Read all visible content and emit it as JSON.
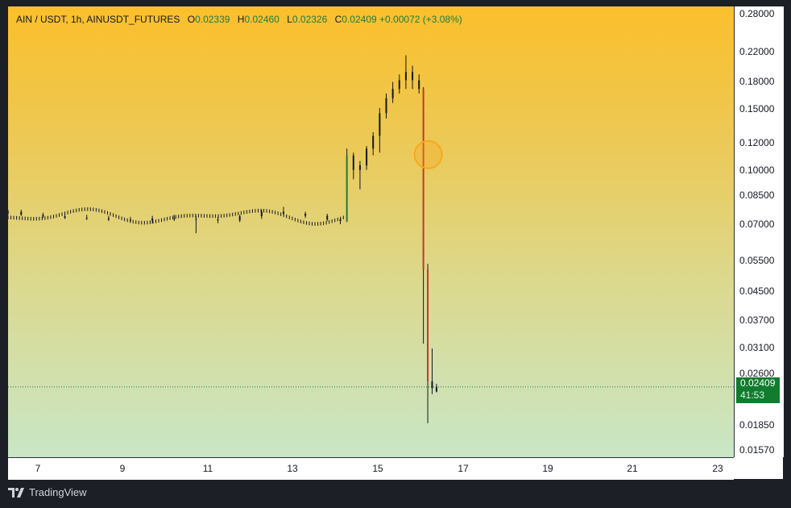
{
  "legend": {
    "symbol": "AIN / USDT, 1h, AINUSDT_FUTURES",
    "o_label": "O",
    "o": "0.02339",
    "h_label": "H",
    "h": "0.02460",
    "l_label": "L",
    "l": "0.02326",
    "c_label": "C",
    "c": "0.02409",
    "change": "+0.00072 (+3.08%)"
  },
  "price_axis": [
    "0.28000",
    "0.22000",
    "0.18000",
    "0.15000",
    "0.12000",
    "0.10000",
    "0.08500",
    "0.07000",
    "0.05500",
    "0.04500",
    "0.03700",
    "0.03100",
    "0.02600",
    "0.01850",
    "0.01570"
  ],
  "time_axis": [
    "7",
    "9",
    "11",
    "13",
    "15",
    "17",
    "19",
    "21",
    "23"
  ],
  "last_price": {
    "value": "0.02409",
    "countdown": "41:53"
  },
  "brand": {
    "name": "TradingView"
  },
  "colors": {
    "up": "#1f7a3f",
    "down": "#c0392b",
    "candle": "#131722",
    "badge": "#0f7c2e",
    "highlight": "#f7a823"
  },
  "chart_data": {
    "type": "candlestick",
    "scale": "log",
    "ylim": [
      0.0152,
      0.292
    ],
    "x_range": [
      "6.7",
      "23.3"
    ],
    "series": [
      {
        "values": [
          {
            "t": 6.7,
            "o": 0.0755,
            "h": 0.077,
            "l": 0.0745,
            "c": 0.076
          },
          {
            "t": 7.0,
            "o": 0.076,
            "h": 0.077,
            "l": 0.074,
            "c": 0.0745
          },
          {
            "t": 7.5,
            "o": 0.0745,
            "h": 0.0755,
            "l": 0.073,
            "c": 0.0738
          },
          {
            "t": 8.0,
            "o": 0.0738,
            "h": 0.075,
            "l": 0.0725,
            "c": 0.073
          },
          {
            "t": 8.5,
            "o": 0.073,
            "h": 0.0745,
            "l": 0.072,
            "c": 0.0728
          },
          {
            "t": 9.0,
            "o": 0.0728,
            "h": 0.074,
            "l": 0.0715,
            "c": 0.0722
          },
          {
            "t": 9.5,
            "o": 0.0722,
            "h": 0.0735,
            "l": 0.071,
            "c": 0.0718
          },
          {
            "t": 10.0,
            "o": 0.0718,
            "h": 0.074,
            "l": 0.0705,
            "c": 0.0728
          },
          {
            "t": 10.5,
            "o": 0.0728,
            "h": 0.0745,
            "l": 0.0715,
            "c": 0.0725
          },
          {
            "t": 11.0,
            "o": 0.0725,
            "h": 0.074,
            "l": 0.066,
            "c": 0.0722
          },
          {
            "t": 11.5,
            "o": 0.0722,
            "h": 0.0735,
            "l": 0.0705,
            "c": 0.0718
          },
          {
            "t": 12.0,
            "o": 0.0718,
            "h": 0.0745,
            "l": 0.071,
            "c": 0.0738
          },
          {
            "t": 12.5,
            "o": 0.0738,
            "h": 0.077,
            "l": 0.0725,
            "c": 0.076
          },
          {
            "t": 13.0,
            "o": 0.076,
            "h": 0.0785,
            "l": 0.0745,
            "c": 0.075
          },
          {
            "t": 13.5,
            "o": 0.075,
            "h": 0.076,
            "l": 0.073,
            "c": 0.074
          },
          {
            "t": 14.0,
            "o": 0.074,
            "h": 0.075,
            "l": 0.0715,
            "c": 0.0722
          },
          {
            "t": 14.3,
            "o": 0.0722,
            "h": 0.073,
            "l": 0.07,
            "c": 0.0715
          },
          {
            "t": 14.45,
            "o": 0.0715,
            "h": 0.115,
            "l": 0.071,
            "c": 0.11
          },
          {
            "t": 14.6,
            "o": 0.11,
            "h": 0.112,
            "l": 0.094,
            "c": 0.1
          },
          {
            "t": 14.75,
            "o": 0.1,
            "h": 0.106,
            "l": 0.088,
            "c": 0.103
          },
          {
            "t": 14.9,
            "o": 0.103,
            "h": 0.117,
            "l": 0.1,
            "c": 0.115
          },
          {
            "t": 15.05,
            "o": 0.115,
            "h": 0.128,
            "l": 0.11,
            "c": 0.125
          },
          {
            "t": 15.2,
            "o": 0.125,
            "h": 0.15,
            "l": 0.112,
            "c": 0.145
          },
          {
            "t": 15.35,
            "o": 0.145,
            "h": 0.165,
            "l": 0.14,
            "c": 0.16
          },
          {
            "t": 15.5,
            "o": 0.16,
            "h": 0.178,
            "l": 0.155,
            "c": 0.17
          },
          {
            "t": 15.65,
            "o": 0.17,
            "h": 0.187,
            "l": 0.165,
            "c": 0.18
          },
          {
            "t": 15.8,
            "o": 0.18,
            "h": 0.212,
            "l": 0.17,
            "c": 0.19
          },
          {
            "t": 15.95,
            "o": 0.19,
            "h": 0.198,
            "l": 0.17,
            "c": 0.18
          },
          {
            "t": 16.1,
            "o": 0.18,
            "h": 0.187,
            "l": 0.165,
            "c": 0.17
          },
          {
            "t": 16.2,
            "o": 0.17,
            "h": 0.172,
            "l": 0.032,
            "c": 0.052
          },
          {
            "t": 16.3,
            "o": 0.052,
            "h": 0.054,
            "l": 0.019,
            "c": 0.025
          },
          {
            "t": 16.4,
            "o": 0.025,
            "h": 0.031,
            "l": 0.023,
            "c": 0.0239
          },
          {
            "t": 16.5,
            "o": 0.02339,
            "h": 0.0246,
            "l": 0.02326,
            "c": 0.02409
          }
        ]
      }
    ],
    "last_value": 0.02409,
    "grid": false
  }
}
